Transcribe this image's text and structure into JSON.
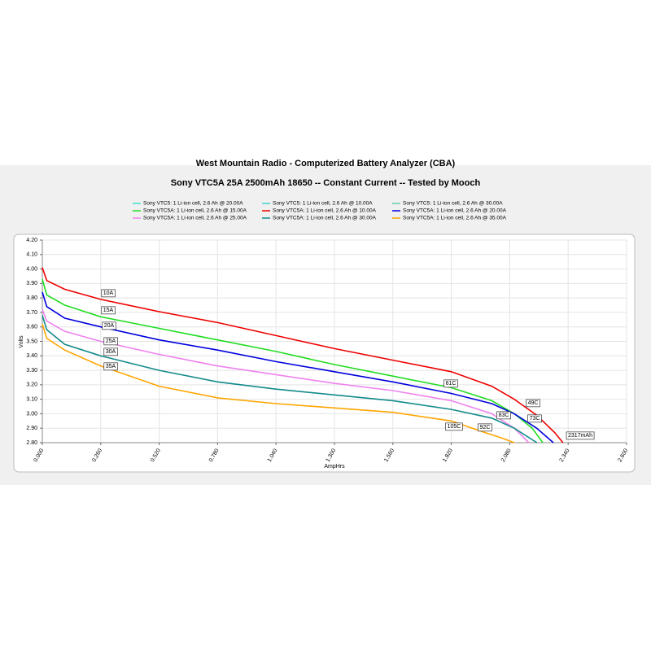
{
  "chart_data": {
    "type": "line",
    "title": "West Mountain Radio - Computerized Battery Analyzer (CBA)",
    "subtitle": "Sony VTC5A 25A 2500mAh 18650 -- Constant Current -- Tested by Mooch",
    "x_label": "AmpHrs",
    "y_label": "Volts",
    "grid": true,
    "xlim": [
      0,
      2.6
    ],
    "ylim": [
      2.8,
      4.2
    ],
    "xticks": [
      {
        "value": 0,
        "label": "0.000"
      },
      {
        "value": 0.26,
        "label": "0.260"
      },
      {
        "value": 0.52,
        "label": "0.520"
      },
      {
        "value": 0.78,
        "label": "0.780"
      },
      {
        "value": 1.04,
        "label": "1.040"
      },
      {
        "value": 1.3,
        "label": "1.300"
      },
      {
        "value": 1.56,
        "label": "1.560"
      },
      {
        "value": 1.82,
        "label": "1.820"
      },
      {
        "value": 2.08,
        "label": "2.080"
      },
      {
        "value": 2.34,
        "label": "2.340"
      },
      {
        "value": 2.6,
        "label": "2.600"
      }
    ],
    "yticks": [
      {
        "value": 2.8,
        "label": "2.80"
      },
      {
        "value": 2.9,
        "label": "2.90"
      },
      {
        "value": 3.0,
        "label": "3.00"
      },
      {
        "value": 3.1,
        "label": "3.10"
      },
      {
        "value": 3.2,
        "label": "3.20"
      },
      {
        "value": 3.3,
        "label": "3.30"
      },
      {
        "value": 3.4,
        "label": "3.40"
      },
      {
        "value": 3.5,
        "label": "3.50"
      },
      {
        "value": 3.6,
        "label": "3.60"
      },
      {
        "value": 3.7,
        "label": "3.70"
      },
      {
        "value": 3.8,
        "label": "3.80"
      },
      {
        "value": 3.9,
        "label": "3.90"
      },
      {
        "value": 4.0,
        "label": "4.00"
      },
      {
        "value": 4.1,
        "label": "4.10"
      },
      {
        "value": 4.2,
        "label": "4.20"
      }
    ],
    "series": [
      {
        "name": "Sony VTC5: 1 Li-ion cell, 2.6 Ah @ 20.00A",
        "color": "#40e0d0",
        "x": [],
        "values": []
      },
      {
        "name": "Sony VTC5: 1 Li-ion cell, 2.6 Ah @ 10.00A",
        "color": "#48d1cc",
        "x": [],
        "values": []
      },
      {
        "name": "Sony VTC5: 1 Li-ion cell, 2.6 Ah @ 30.00A",
        "color": "#66cdaa",
        "x": [],
        "values": []
      },
      {
        "name": "Sony VTC5A: 1 Li-ion cell, 2.6 Ah @ 15.00A",
        "color": "#22dd22",
        "x": [
          0,
          0.02,
          0.1,
          0.26,
          0.52,
          0.78,
          1.04,
          1.3,
          1.56,
          1.82,
          2.0,
          2.1,
          2.18,
          2.227
        ],
        "values": [
          3.93,
          3.82,
          3.75,
          3.67,
          3.59,
          3.51,
          3.43,
          3.34,
          3.26,
          3.18,
          3.09,
          3.0,
          2.9,
          2.8
        ]
      },
      {
        "name": "Sony VTC5A: 1 Li-ion cell, 2.6 Ah @ 10.00A",
        "color": "#ee0000",
        "x": [
          0,
          0.02,
          0.1,
          0.26,
          0.52,
          0.78,
          1.04,
          1.3,
          1.56,
          1.82,
          2.0,
          2.1,
          2.2,
          2.28,
          2.317
        ],
        "values": [
          4.01,
          3.92,
          3.86,
          3.79,
          3.705,
          3.63,
          3.54,
          3.45,
          3.37,
          3.29,
          3.19,
          3.1,
          2.99,
          2.87,
          2.8
        ]
      },
      {
        "name": "Sony VTC5A: 1 Li-ion cell, 2.6 Ah @ 20.00A",
        "color": "#0000dd",
        "x": [
          0,
          0.02,
          0.1,
          0.26,
          0.52,
          0.78,
          1.04,
          1.3,
          1.56,
          1.82,
          2.0,
          2.1,
          2.2,
          2.274
        ],
        "values": [
          3.84,
          3.74,
          3.66,
          3.6,
          3.51,
          3.44,
          3.36,
          3.29,
          3.22,
          3.14,
          3.07,
          3.0,
          2.9,
          2.8
        ]
      },
      {
        "name": "Sony VTC5A: 1 Li-ion cell, 2.6 Ah @ 25.00A",
        "color": "#ee82ee",
        "x": [
          0,
          0.02,
          0.1,
          0.26,
          0.52,
          0.78,
          1.04,
          1.3,
          1.56,
          1.82,
          2.0,
          2.1,
          2.165
        ],
        "values": [
          3.72,
          3.64,
          3.57,
          3.5,
          3.41,
          3.33,
          3.27,
          3.21,
          3.16,
          3.09,
          3.0,
          2.9,
          2.8
        ]
      },
      {
        "name": "Sony VTC5A: 1 Li-ion cell, 2.6 Ah @ 30.00A",
        "color": "#138a8a",
        "x": [
          0,
          0.02,
          0.1,
          0.26,
          0.52,
          0.78,
          1.04,
          1.3,
          1.56,
          1.82,
          2.0,
          2.1,
          2.201
        ],
        "values": [
          3.68,
          3.58,
          3.48,
          3.4,
          3.3,
          3.22,
          3.17,
          3.13,
          3.09,
          3.03,
          2.97,
          2.9,
          2.8
        ]
      },
      {
        "name": "Sony VTC5A: 1 Li-ion cell, 2.6 Ah @ 35.00A",
        "color": "#ffa500",
        "x": [
          0,
          0.02,
          0.1,
          0.26,
          0.52,
          0.78,
          1.04,
          1.3,
          1.56,
          1.82,
          1.95,
          2.05,
          2.1
        ],
        "values": [
          3.62,
          3.52,
          3.44,
          3.33,
          3.19,
          3.11,
          3.07,
          3.04,
          3.01,
          2.95,
          2.88,
          2.83,
          2.8
        ]
      }
    ],
    "annotations": [
      "10A",
      "15A",
      "20A",
      "25A",
      "30A",
      "35A",
      "61C",
      "49C",
      "73C",
      "83C",
      "92C",
      "105C",
      "2317mAh"
    ]
  }
}
